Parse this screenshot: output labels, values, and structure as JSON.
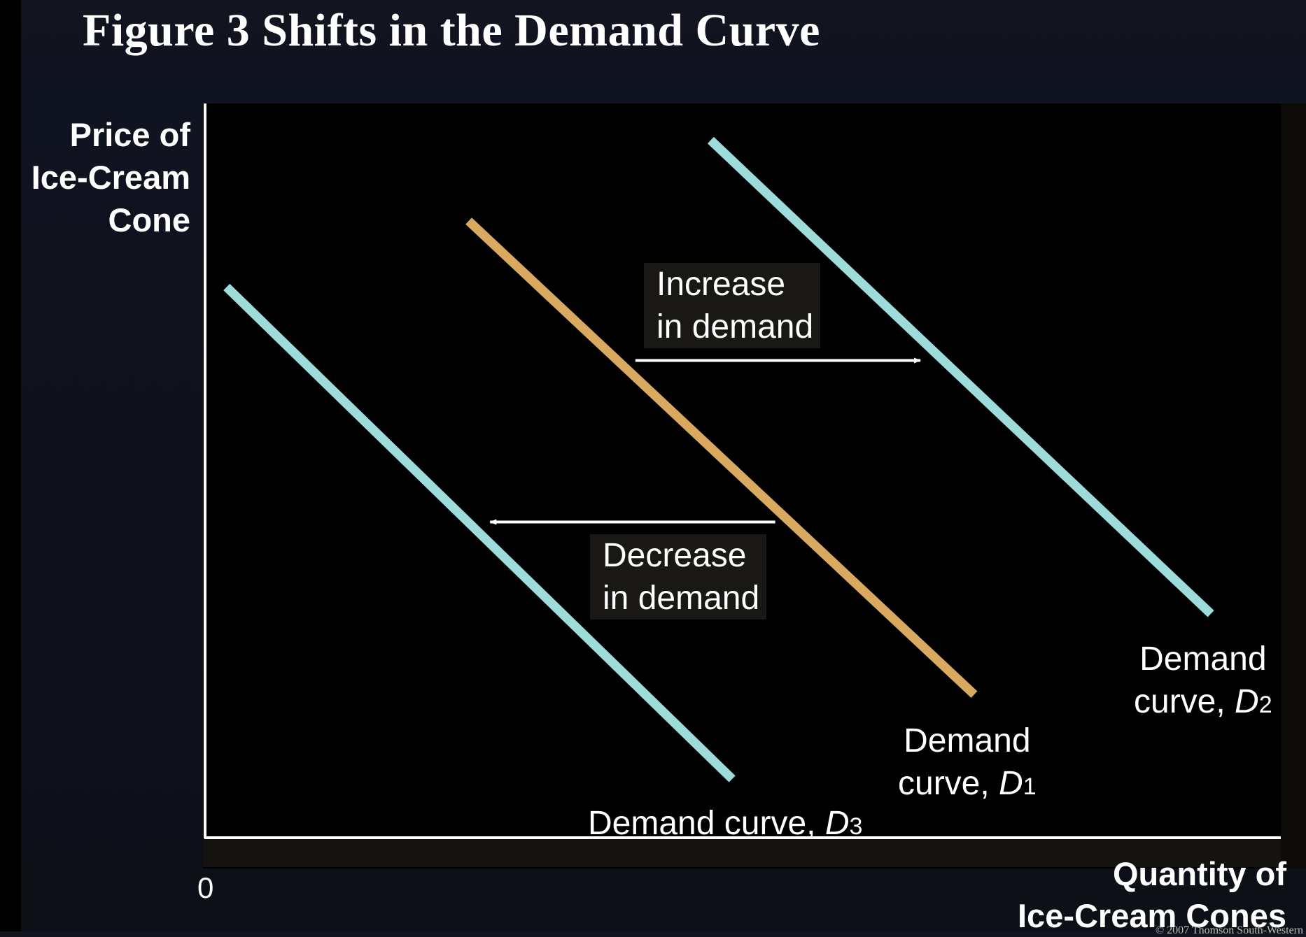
{
  "title": "Figure 3 Shifts in the Demand Curve",
  "copyright": "© 2007 Thomson South-Western",
  "chart_data": {
    "type": "line",
    "title": "Figure 3 Shifts in the Demand Curve",
    "ylabel": [
      "Price of",
      "Ice-Cream",
      "Cone"
    ],
    "xlabel": [
      "Quantity of",
      "Ice-Cream Cones"
    ],
    "origin_label": "0",
    "xlim": [
      0,
      100
    ],
    "ylim": [
      0,
      100
    ],
    "grid": false,
    "series": [
      {
        "id": "D3",
        "label_prefix": "Demand curve, ",
        "label_letter": "D",
        "label_sub": "3",
        "color": "#9edcdb",
        "x": [
          2,
          49
        ],
        "y": [
          75,
          8
        ]
      },
      {
        "id": "D1",
        "label_prefix": [
          "Demand",
          "curve, "
        ],
        "label_letter": "D",
        "label_sub": "1",
        "color": "#d8a95f",
        "x": [
          24.5,
          71.5
        ],
        "y": [
          84,
          19.5
        ]
      },
      {
        "id": "D2",
        "label_prefix": [
          "Demand",
          "curve, "
        ],
        "label_letter": "D",
        "label_sub": "2",
        "color": "#9edcdb",
        "x": [
          47,
          93.5
        ],
        "y": [
          95,
          30.5
        ]
      }
    ],
    "annotations": [
      {
        "id": "increase",
        "text": [
          "Increase",
          "in demand"
        ],
        "arrow_from_x": 40,
        "arrow_to_x": 66.5,
        "arrow_y": 65
      },
      {
        "id": "decrease",
        "text": [
          "Decrease",
          "in demand"
        ],
        "arrow_from_x": 53,
        "arrow_to_x": 26.5,
        "arrow_y": 43
      }
    ]
  }
}
